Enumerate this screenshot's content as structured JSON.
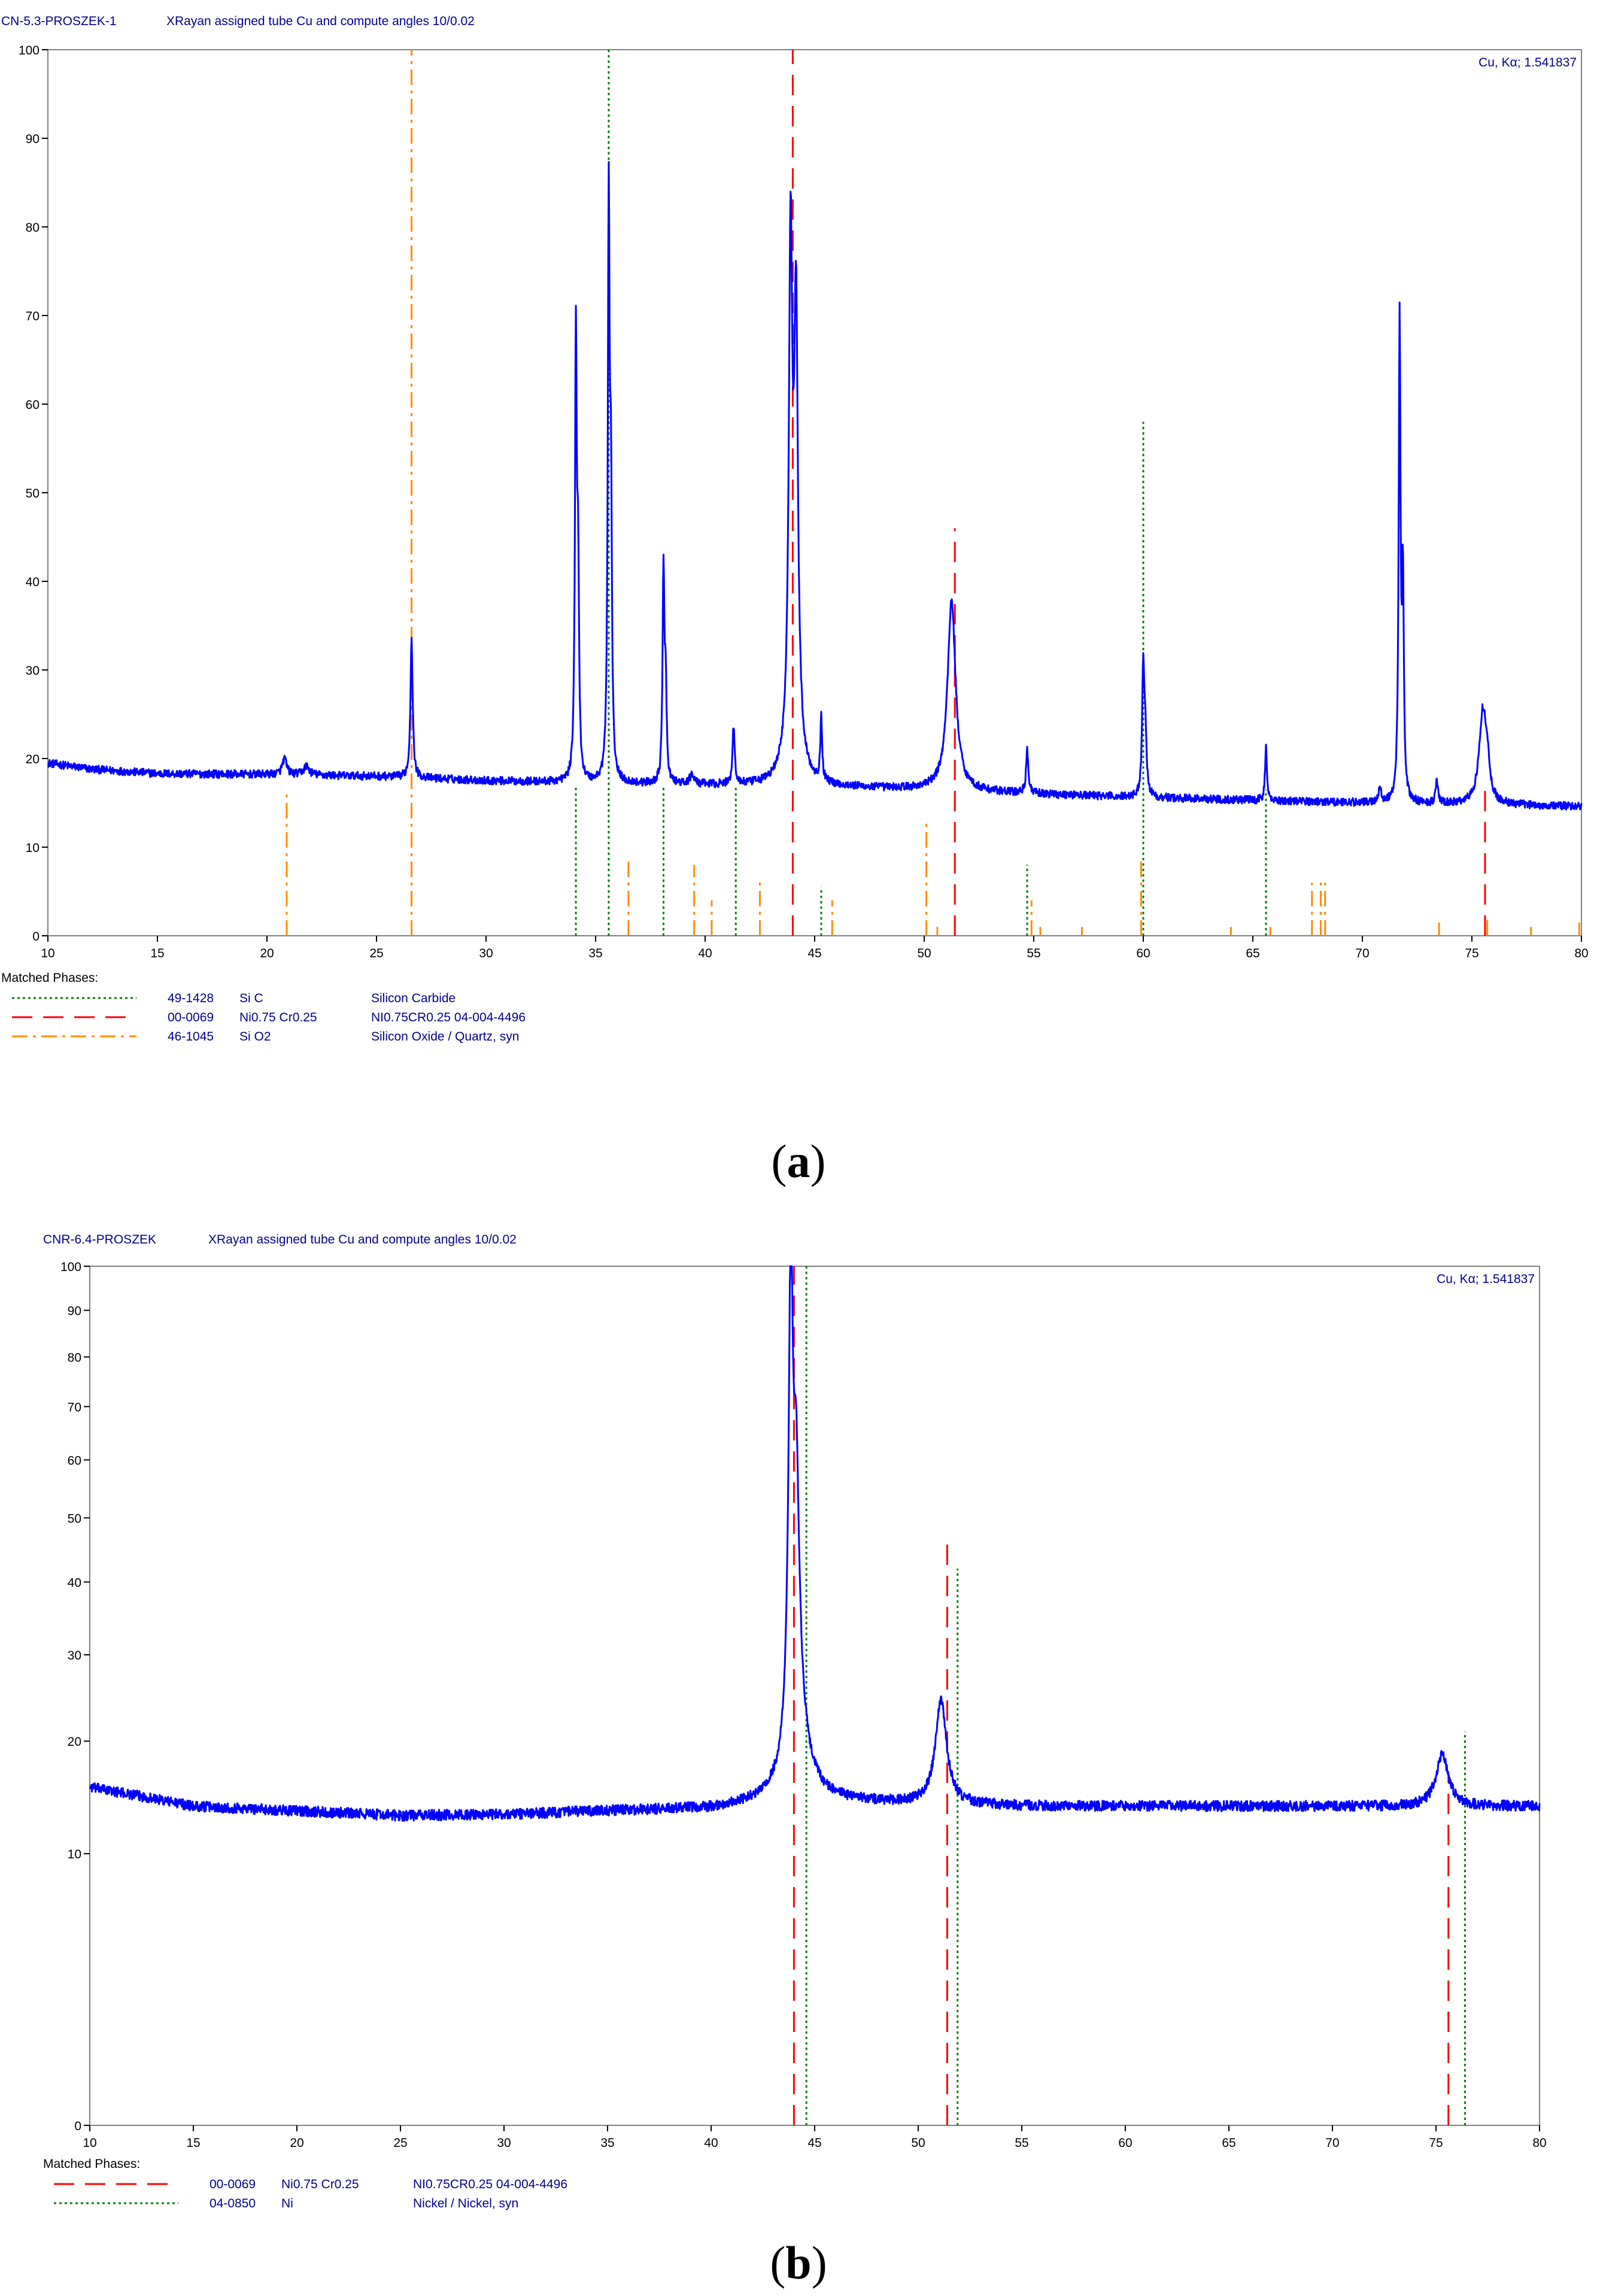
{
  "chart_data": [
    {
      "type": "line",
      "panel_label": "a",
      "sample_name": "CN-5.3-PROSZEK-1",
      "scan_info": "XRayan assigned tube Cu and compute angles 10/0.02",
      "radiation": "Cu, Kα; 1.541837",
      "xlim": [
        10,
        80
      ],
      "ylim": [
        0,
        100
      ],
      "x_ticks": [
        10,
        15,
        20,
        25,
        30,
        35,
        40,
        45,
        50,
        55,
        60,
        65,
        70,
        75,
        80
      ],
      "y_ticks": [
        0,
        10,
        20,
        30,
        40,
        50,
        60,
        70,
        80,
        90,
        100
      ],
      "y_scale": "linear",
      "grid": false,
      "series_color": "#0000ff",
      "baseline": [
        [
          10,
          19.5
        ],
        [
          12,
          18.8
        ],
        [
          15,
          18.3
        ],
        [
          20,
          18.2
        ],
        [
          25,
          18.0
        ],
        [
          27,
          17.8
        ],
        [
          30,
          17.5
        ],
        [
          35,
          17.2
        ],
        [
          40,
          17.0
        ],
        [
          45,
          16.8
        ],
        [
          50,
          16.5
        ],
        [
          55,
          16.0
        ],
        [
          60,
          15.6
        ],
        [
          65,
          15.3
        ],
        [
          70,
          15.0
        ],
        [
          75,
          14.8
        ],
        [
          80,
          14.6
        ]
      ],
      "peaks": [
        {
          "x": 20.8,
          "h": 1.8,
          "w": 0.12
        },
        {
          "x": 21.8,
          "h": 1.0,
          "w": 0.15
        },
        {
          "x": 26.6,
          "h": 16.0,
          "w": 0.06
        },
        {
          "x": 34.1,
          "h": 49.0,
          "w": 0.05
        },
        {
          "x": 34.2,
          "h": 22.0,
          "w": 0.05
        },
        {
          "x": 35.6,
          "h": 64.0,
          "w": 0.05
        },
        {
          "x": 35.7,
          "h": 30.0,
          "w": 0.05
        },
        {
          "x": 38.1,
          "h": 24.0,
          "w": 0.05
        },
        {
          "x": 38.2,
          "h": 10.0,
          "w": 0.05
        },
        {
          "x": 39.4,
          "h": 1.2,
          "w": 0.1
        },
        {
          "x": 41.3,
          "h": 6.5,
          "w": 0.06
        },
        {
          "x": 43.9,
          "h": 53.0,
          "w": 0.09
        },
        {
          "x": 44.15,
          "h": 46.0,
          "w": 0.1
        },
        {
          "x": 44.0,
          "h": 9.0,
          "w": 0.3
        },
        {
          "x": 45.3,
          "h": 7.0,
          "w": 0.05
        },
        {
          "x": 51.25,
          "h": 21.5,
          "w": 0.22
        },
        {
          "x": 54.7,
          "h": 5.0,
          "w": 0.06
        },
        {
          "x": 60.0,
          "h": 15.0,
          "w": 0.06
        },
        {
          "x": 60.1,
          "h": 6.0,
          "w": 0.06
        },
        {
          "x": 65.6,
          "h": 6.0,
          "w": 0.05
        },
        {
          "x": 70.8,
          "h": 1.5,
          "w": 0.08
        },
        {
          "x": 71.7,
          "h": 54.0,
          "w": 0.05
        },
        {
          "x": 71.85,
          "h": 24.0,
          "w": 0.05
        },
        {
          "x": 73.4,
          "h": 2.5,
          "w": 0.06
        },
        {
          "x": 75.5,
          "h": 10.5,
          "w": 0.2
        },
        {
          "x": 75.7,
          "h": 3.0,
          "w": 0.1
        }
      ],
      "reference_phases": [
        {
          "code": "49-1428",
          "formula": "Si C",
          "name": "Silicon Carbide",
          "color": "#008000",
          "dash": "dotted",
          "lines": [
            [
              34.1,
              17
            ],
            [
              35.6,
              100
            ],
            [
              38.1,
              17
            ],
            [
              41.4,
              17
            ],
            [
              45.3,
              5.5
            ],
            [
              54.7,
              8
            ],
            [
              60.0,
              58
            ],
            [
              65.6,
              16.5
            ]
          ]
        },
        {
          "code": "00-0069",
          "formula": "Ni0.75 Cr0.25",
          "name": "NI0.75CR0.25  04-004-4496",
          "color": "#ff0000",
          "dash": "dashed",
          "lines": [
            [
              44.0,
              100
            ],
            [
              51.4,
              46
            ],
            [
              75.6,
              17
            ]
          ]
        },
        {
          "code": "46-1045",
          "formula": "Si O2",
          "name": "Silicon Oxide / Quartz, syn",
          "color": "#ff8c00",
          "dash": "dashdot",
          "lines": [
            [
              20.9,
              16
            ],
            [
              26.6,
              100
            ],
            [
              36.5,
              8.5
            ],
            [
              39.5,
              8
            ],
            [
              40.3,
              4
            ],
            [
              42.5,
              6
            ],
            [
              45.8,
              4
            ],
            [
              50.1,
              13
            ],
            [
              50.6,
              1
            ],
            [
              54.9,
              4
            ],
            [
              55.3,
              1
            ],
            [
              57.2,
              1
            ],
            [
              59.9,
              8.5
            ],
            [
              64.0,
              1
            ],
            [
              65.8,
              1
            ],
            [
              67.7,
              6
            ],
            [
              68.1,
              6
            ],
            [
              68.3,
              6
            ],
            [
              73.5,
              1.5
            ],
            [
              75.7,
              2
            ],
            [
              77.7,
              1
            ],
            [
              79.9,
              1.5
            ]
          ]
        }
      ],
      "legend_heading": "Matched Phases:",
      "legend_position": "bottom-left"
    },
    {
      "type": "line",
      "panel_label": "b",
      "sample_name": "CNR-6.4-PROSZEK",
      "scan_info": "XRayan assigned tube Cu and compute angles 10/0.02",
      "radiation": "Cu, Kα; 1.541837",
      "xlim": [
        10,
        80
      ],
      "ylim": [
        0,
        100
      ],
      "x_ticks": [
        10,
        15,
        20,
        25,
        30,
        35,
        40,
        45,
        50,
        55,
        60,
        65,
        70,
        75,
        80
      ],
      "y_ticks": [
        0,
        10,
        20,
        30,
        40,
        50,
        60,
        70,
        80,
        90,
        100
      ],
      "y_scale": "sqrt",
      "grid": false,
      "series_color": "#0000ff",
      "baseline": [
        [
          10,
          15.5
        ],
        [
          13,
          14.5
        ],
        [
          15,
          13.8
        ],
        [
          20,
          13.4
        ],
        [
          25,
          13.0
        ],
        [
          30,
          13.1
        ],
        [
          35,
          13.4
        ],
        [
          40,
          13.6
        ],
        [
          43,
          14.2
        ],
        [
          45,
          14.3
        ],
        [
          50,
          14.0
        ],
        [
          55,
          13.8
        ],
        [
          60,
          13.8
        ],
        [
          65,
          13.8
        ],
        [
          70,
          13.8
        ],
        [
          75,
          13.8
        ],
        [
          80,
          13.8
        ]
      ],
      "peaks": [
        {
          "x": 43.85,
          "h": 86.0,
          "w": 0.1
        },
        {
          "x": 44.1,
          "h": 40.0,
          "w": 0.16
        },
        {
          "x": 44.2,
          "h": 5.0,
          "w": 0.6
        },
        {
          "x": 51.1,
          "h": 10.5,
          "w": 0.3
        },
        {
          "x": 75.3,
          "h": 4.8,
          "w": 0.35
        }
      ],
      "reference_phases": [
        {
          "code": "00-0069",
          "formula": "Ni0.75 Cr0.25",
          "name": "NI0.75CR0.25  04-004-4496",
          "color": "#ff0000",
          "dash": "dashed",
          "lines": [
            [
              44.0,
              100
            ],
            [
              51.4,
              46
            ],
            [
              75.6,
              17
            ]
          ]
        },
        {
          "code": "04-0850",
          "formula": "Ni",
          "name": "Nickel / Nickel, syn",
          "color": "#008000",
          "dash": "dotted",
          "lines": [
            [
              44.6,
              100
            ],
            [
              51.9,
              42
            ],
            [
              76.4,
              21
            ]
          ]
        }
      ],
      "legend_heading": "Matched Phases:",
      "legend_position": "bottom-left"
    }
  ]
}
